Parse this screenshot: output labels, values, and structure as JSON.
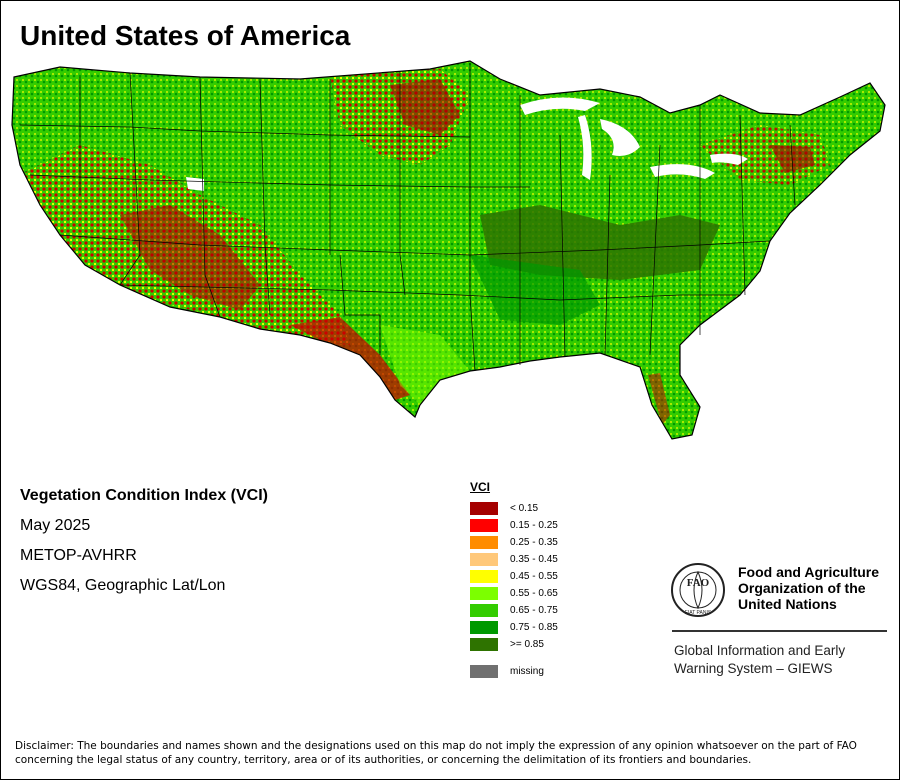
{
  "title": "United States of America",
  "info": {
    "index_name": "Vegetation Condition Index (VCI)",
    "period": "May 2025",
    "sensor": "METOP-AVHRR",
    "projection": "WGS84, Geographic Lat/Lon"
  },
  "legend": {
    "title": "VCI",
    "classes": [
      {
        "label": "< 0.15",
        "color": "#a50000"
      },
      {
        "label": "0.15 - 0.25",
        "color": "#ff0000"
      },
      {
        "label": "0.25 - 0.35",
        "color": "#ff8c00"
      },
      {
        "label": "0.35 - 0.45",
        "color": "#ffc87a"
      },
      {
        "label": "0.45 - 0.55",
        "color": "#ffff00"
      },
      {
        "label": "0.55 - 0.65",
        "color": "#7cff00"
      },
      {
        "label": "0.65 - 0.75",
        "color": "#33cc00"
      },
      {
        "label": "0.75 - 0.85",
        "color": "#009900"
      },
      {
        "label": ">= 0.85",
        "color": "#2e7300"
      }
    ],
    "missing": {
      "label": "missing",
      "color": "#707070"
    }
  },
  "organization": {
    "name_line1": "Food and Agriculture",
    "name_line2": "Organization of the",
    "name_line3": "United Nations",
    "logo_text": "FAO",
    "logo_motto": "FIAT PANIS",
    "system_line1": "Global Information and Early",
    "system_line2": "Warning System – GIEWS"
  },
  "disclaimer": "Disclaimer: The boundaries and names shown and the designations used on this map do not imply the expression of any opinion whatsoever on the part of FAO concerning the legal status of any country, territory, area or of its authorities, or concerning the delimitation of its frontiers and boundaries."
}
